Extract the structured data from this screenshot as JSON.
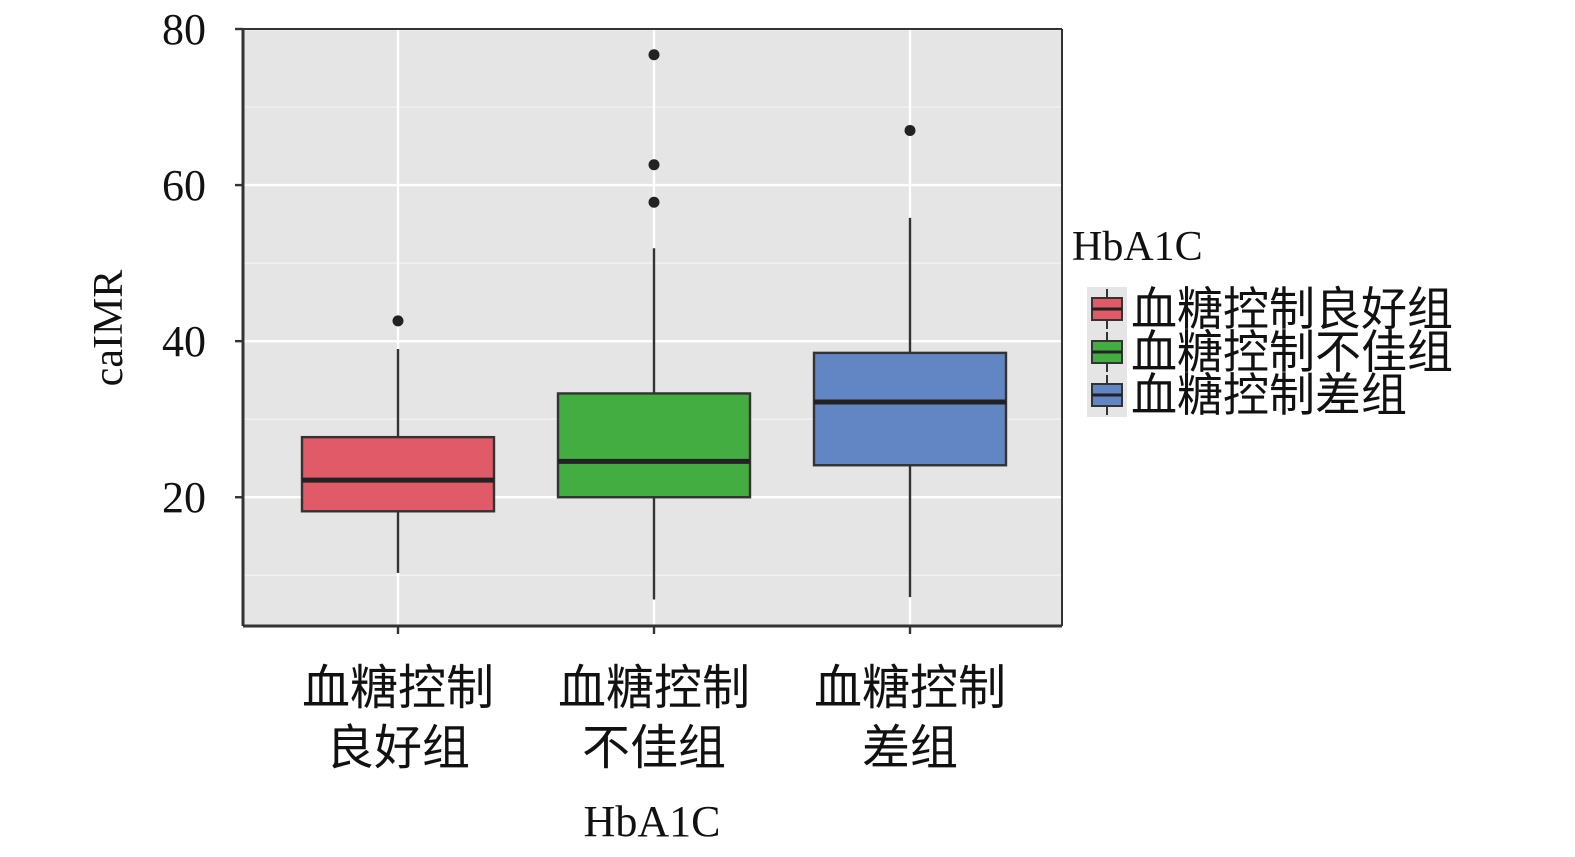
{
  "chart_data": {
    "type": "box",
    "xlabel": "HbA1C",
    "ylabel": "caIMR",
    "ylim": [
      3.5,
      80
    ],
    "yticks": [
      20,
      40,
      60,
      80
    ],
    "grid": true,
    "legend": {
      "title": "HbA1C",
      "placement": "right",
      "entries": [
        "血糖控制良好组",
        "血糖控制不佳组",
        "血糖控制差组"
      ]
    },
    "categories": [
      {
        "lines": [
          "血糖控制",
          "良好组"
        ]
      },
      {
        "lines": [
          "血糖控制",
          "不佳组"
        ]
      },
      {
        "lines": [
          "血糖控制",
          "差组"
        ]
      }
    ],
    "series": [
      {
        "name": "血糖控制良好组",
        "color": "#e05a68",
        "min": 10.3,
        "q1": 18.2,
        "median": 22.2,
        "q3": 27.7,
        "max": 39.0,
        "outliers": [
          42.6
        ]
      },
      {
        "name": "血糖控制不佳组",
        "color": "#43ad42",
        "min": 6.9,
        "q1": 20.0,
        "median": 24.6,
        "q3": 33.3,
        "max": 51.9,
        "outliers": [
          57.8,
          62.6,
          76.7
        ]
      },
      {
        "name": "血糖控制差组",
        "color": "#6286c4",
        "min": 7.2,
        "q1": 24.1,
        "median": 32.2,
        "q3": 38.5,
        "max": 55.8,
        "outliers": [
          67.0
        ]
      }
    ]
  }
}
